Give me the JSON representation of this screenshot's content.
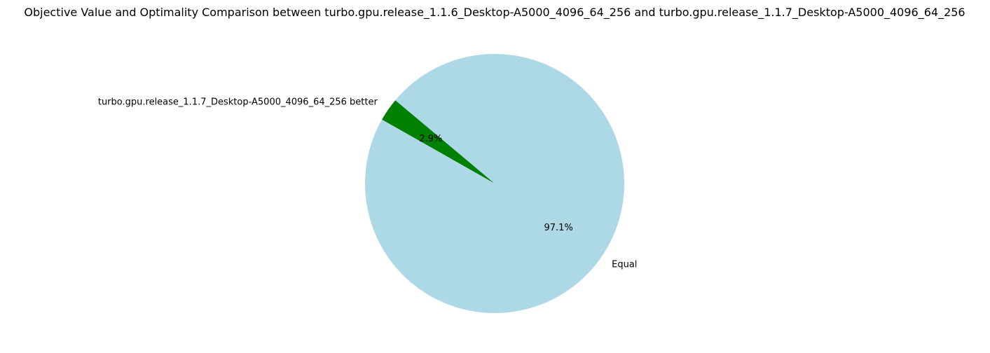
{
  "chart_data": {
    "type": "pie",
    "title": "Objective Value and Optimality Comparison between turbo.gpu.release_1.1.6_Desktop-A5000_4096_64_256 and turbo.gpu.release_1.1.7_Desktop-A5000_4096_64_256",
    "slices": [
      {
        "label": "turbo.gpu.release_1.1.7_Desktop-A5000_4096_64_256 better",
        "value": 2.9,
        "pct_label": "2.9%",
        "color": "#008000"
      },
      {
        "label": "Equal",
        "value": 97.1,
        "pct_label": "97.1%",
        "color": "#add8e6"
      }
    ],
    "start_angle_deg": 140,
    "direction": "counterclockwise",
    "legend": "none"
  }
}
